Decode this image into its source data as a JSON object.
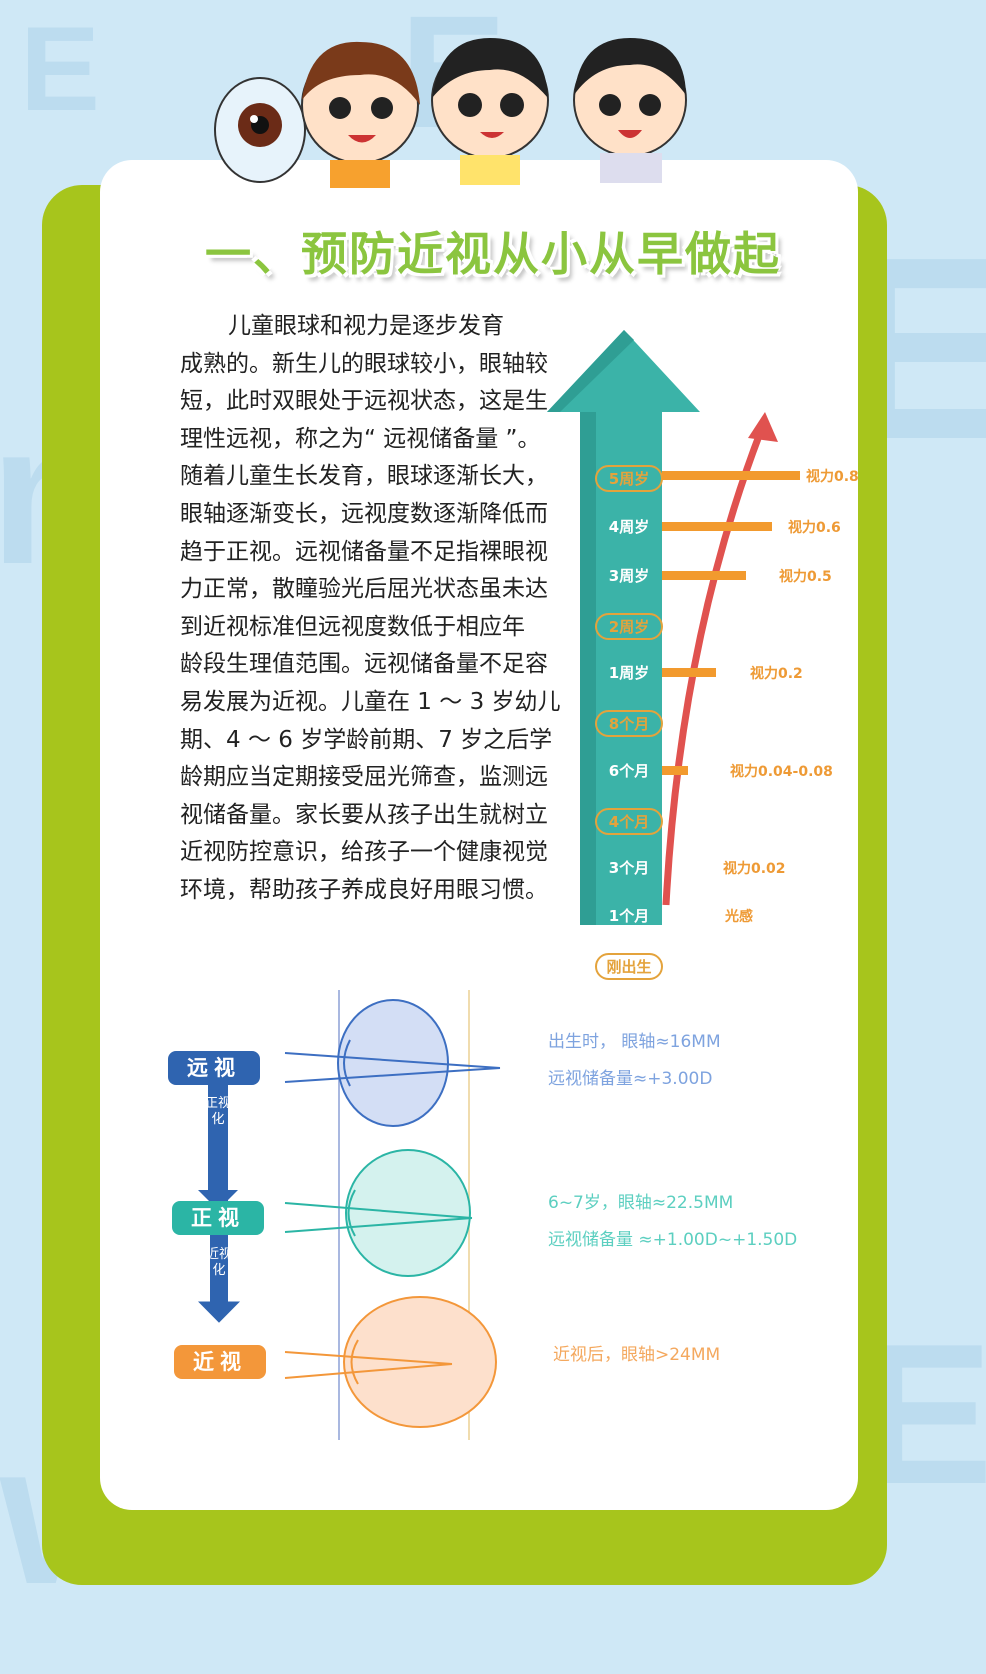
{
  "title": "一、预防近视从小从早做起",
  "body_lines": [
    "儿童眼球和视力是逐步发育",
    "成熟的。新生儿的眼球较小，眼轴较",
    "短，此时双眼处于远视状态，这是生",
    "理性远视，称之为“ 远视储备量 ”。",
    "随着儿童生长发育，眼球逐渐长大，",
    "眼轴逐渐变长，远视度数逐渐降低而",
    "趋于正视。远视储备量不足指裸眼视",
    "力正常，散瞳验光后屈光状态虽未达",
    "到近视标准但远视度数低于相应年",
    "龄段生理值范围。远视储备量不足容",
    "易发展为近视。儿童在 1 ～ 3 岁幼儿",
    "期、4 ～ 6 岁学龄前期、7 岁之后学",
    "龄期应当定期接受屈光筛查，监测远",
    "视储备量。家长要从孩子出生就树立",
    "近视防控意识，给孩子一个健康视觉",
    "环境，帮助孩子养成良好用眼习惯。"
  ],
  "timeline": [
    {
      "age": "5周岁",
      "pill": true,
      "vision": "视力0.8"
    },
    {
      "age": "4周岁",
      "pill": false,
      "vision": "视力0.6"
    },
    {
      "age": "3周岁",
      "pill": false,
      "vision": "视力0.5"
    },
    {
      "age": "2周岁",
      "pill": true,
      "vision": ""
    },
    {
      "age": "1周岁",
      "pill": false,
      "vision": "视力0.2"
    },
    {
      "age": "8个月",
      "pill": true,
      "vision": ""
    },
    {
      "age": "6个月",
      "pill": false,
      "vision": "视力0.04-0.08"
    },
    {
      "age": "4个月",
      "pill": true,
      "vision": ""
    },
    {
      "age": "3个月",
      "pill": false,
      "vision": "视力0.02"
    },
    {
      "age": "1个月",
      "pill": false,
      "vision": "光感"
    },
    {
      "age": "刚出生",
      "pill": true,
      "vision": ""
    }
  ],
  "eyes": {
    "hyperopia": {
      "label": "远视",
      "color": "#2f64b0",
      "lines": [
        "出生时， 眼轴≈16MM",
        "远视储备量≈+3.00D"
      ],
      "text_color": "#7ea3df"
    },
    "to_normal": "正视化",
    "emmetropia": {
      "label": "正视",
      "color": "#2bb5a5",
      "lines": [
        "6~7岁，眼轴≈22.5MM",
        "远视储备量 ≈+1.00D~+1.50D"
      ],
      "text_color": "#5ccfc0"
    },
    "to_myopia": "近视化",
    "myopia": {
      "label": "近视",
      "color": "#f3973a",
      "lines": [
        "近视后，眼轴>24MM"
      ],
      "text_color": "#f4a85e"
    }
  },
  "colors": {
    "background": "#cfe8f6",
    "card_back": "#a7c51c",
    "title": "#8bc53f",
    "arrow": "#3bb3a8",
    "bars": "#f29a2e",
    "curve": "#e0524f"
  }
}
